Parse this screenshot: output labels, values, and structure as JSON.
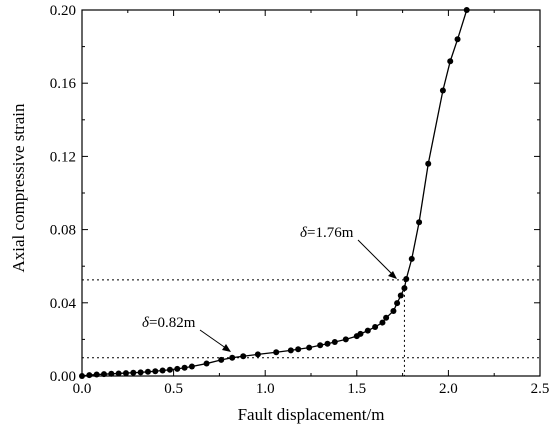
{
  "chart_data": {
    "type": "line",
    "xlabel": "Fault displacement/m",
    "ylabel": "Axial compressive strain",
    "xlim": [
      0.0,
      2.5
    ],
    "ylim": [
      0.0,
      0.2
    ],
    "x_ticks": [
      0.0,
      0.5,
      1.0,
      1.5,
      2.0,
      2.5
    ],
    "y_ticks": [
      0.0,
      0.04,
      0.08,
      0.12,
      0.16,
      0.2
    ],
    "x_tick_labels": [
      "0.0",
      "0.5",
      "1.0",
      "1.5",
      "2.0",
      "2.5"
    ],
    "y_tick_labels": [
      "0.00",
      "0.04",
      "0.08",
      "0.12",
      "0.16",
      "0.20"
    ],
    "grid": false,
    "legend": "none",
    "series": [
      {
        "marker": "circle",
        "points": [
          [
            0.0,
            0.0
          ],
          [
            0.04,
            0.0005
          ],
          [
            0.08,
            0.0008
          ],
          [
            0.12,
            0.001
          ],
          [
            0.16,
            0.0012
          ],
          [
            0.2,
            0.0014
          ],
          [
            0.24,
            0.0016
          ],
          [
            0.28,
            0.0018
          ],
          [
            0.32,
            0.002
          ],
          [
            0.36,
            0.0023
          ],
          [
            0.4,
            0.0026
          ],
          [
            0.44,
            0.003
          ],
          [
            0.48,
            0.0034
          ],
          [
            0.52,
            0.0039
          ],
          [
            0.56,
            0.0045
          ],
          [
            0.6,
            0.0052
          ],
          [
            0.68,
            0.0068
          ],
          [
            0.76,
            0.0088
          ],
          [
            0.82,
            0.01
          ],
          [
            0.88,
            0.0108
          ],
          [
            0.96,
            0.0118
          ],
          [
            1.06,
            0.013
          ],
          [
            1.14,
            0.014
          ],
          [
            1.18,
            0.0146
          ],
          [
            1.24,
            0.0155
          ],
          [
            1.3,
            0.0168
          ],
          [
            1.34,
            0.0176
          ],
          [
            1.38,
            0.0186
          ],
          [
            1.44,
            0.02
          ],
          [
            1.5,
            0.0218
          ],
          [
            1.52,
            0.023
          ],
          [
            1.56,
            0.0248
          ],
          [
            1.6,
            0.0268
          ],
          [
            1.64,
            0.0292
          ],
          [
            1.66,
            0.0318
          ],
          [
            1.7,
            0.0355
          ],
          [
            1.72,
            0.0398
          ],
          [
            1.74,
            0.044
          ],
          [
            1.76,
            0.048
          ],
          [
            1.77,
            0.053
          ],
          [
            1.8,
            0.064
          ],
          [
            1.84,
            0.084
          ],
          [
            1.89,
            0.116
          ],
          [
            1.97,
            0.156
          ],
          [
            2.01,
            0.172
          ],
          [
            2.05,
            0.184
          ],
          [
            2.1,
            0.2
          ],
          [
            2.18,
            0.201
          ]
        ]
      }
    ],
    "reference_lines": {
      "horizontal": [
        0.01,
        0.0525
      ],
      "vertical": [
        1.76
      ]
    },
    "annotations": [
      {
        "delta": "δ",
        "text": "=0.82m",
        "x": 0.82,
        "y": 0.01
      },
      {
        "delta": "δ",
        "text": "=1.76m",
        "x": 1.76,
        "y": 0.0525
      }
    ]
  }
}
